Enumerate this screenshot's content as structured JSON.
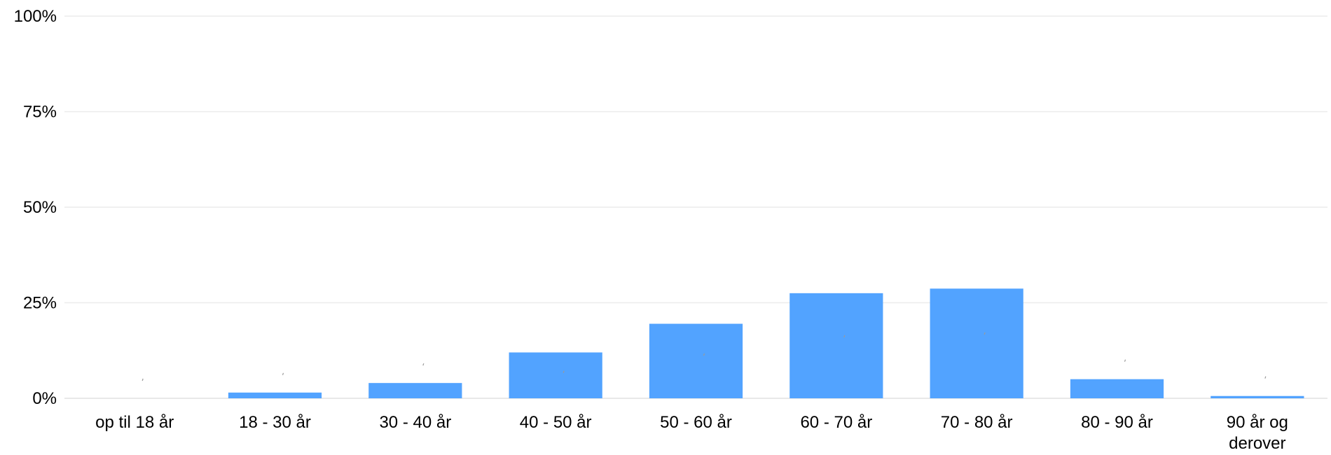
{
  "chart_data": {
    "type": "bar",
    "categories": [
      "op til 18 år",
      "18 - 30 år",
      "30 - 40 år",
      "40 - 50 år",
      "50 - 60 år",
      "60 - 70 år",
      "70 - 80 år",
      "80 - 90 år",
      "90 år og derover"
    ],
    "values": [
      0,
      1.5,
      4,
      12,
      19.5,
      27.5,
      28.7,
      5,
      0.6
    ],
    "ylim": [
      0,
      100
    ],
    "yticks": [
      "0%",
      "25%",
      "50%",
      "75%",
      "100%"
    ],
    "ytick_values": [
      0,
      25,
      50,
      75,
      100
    ],
    "title": "",
    "xlabel": "",
    "ylabel": "",
    "grid": true,
    "legend": "none",
    "bar_color": "#52a3ff"
  }
}
